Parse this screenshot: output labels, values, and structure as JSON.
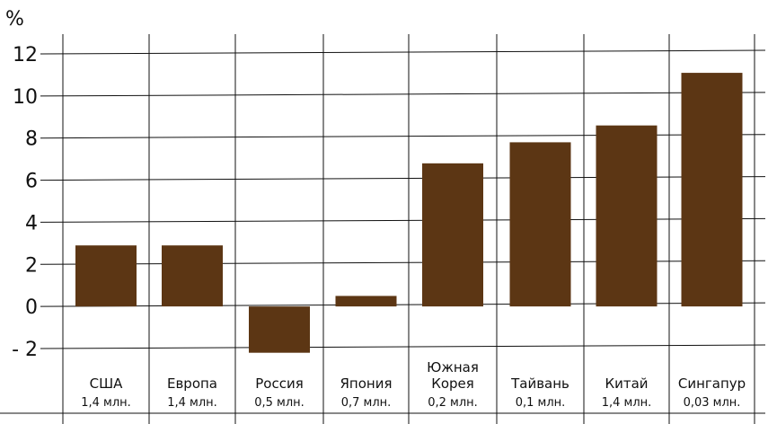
{
  "chart_data": {
    "type": "bar",
    "title": "",
    "ylabel": "%",
    "xlabel": "",
    "ylim": [
      -2,
      12
    ],
    "yticks": [
      "12",
      "10",
      "8",
      "6",
      "4",
      "2",
      "0",
      "- 2"
    ],
    "grid": true,
    "categories": [
      {
        "name_lines": [
          "США"
        ],
        "sub": "1,4 млн."
      },
      {
        "name_lines": [
          "Европа"
        ],
        "sub": "1,4 млн."
      },
      {
        "name_lines": [
          "Россия"
        ],
        "sub": "0,5 млн."
      },
      {
        "name_lines": [
          "Япония"
        ],
        "sub": "0,7 млн."
      },
      {
        "name_lines": [
          "Южная",
          "Корея"
        ],
        "sub": "0,2 млн."
      },
      {
        "name_lines": [
          "Тайвань"
        ],
        "sub": "0,1 млн."
      },
      {
        "name_lines": [
          "Китай"
        ],
        "sub": "1,4 млн."
      },
      {
        "name_lines": [
          "Сингапур"
        ],
        "sub": "0,03 млн."
      }
    ],
    "values": [
      2.9,
      2.9,
      -2.2,
      0.5,
      6.8,
      7.8,
      8.6,
      11.1
    ],
    "bar_color": "#5c3614",
    "line_color": "#111111"
  }
}
